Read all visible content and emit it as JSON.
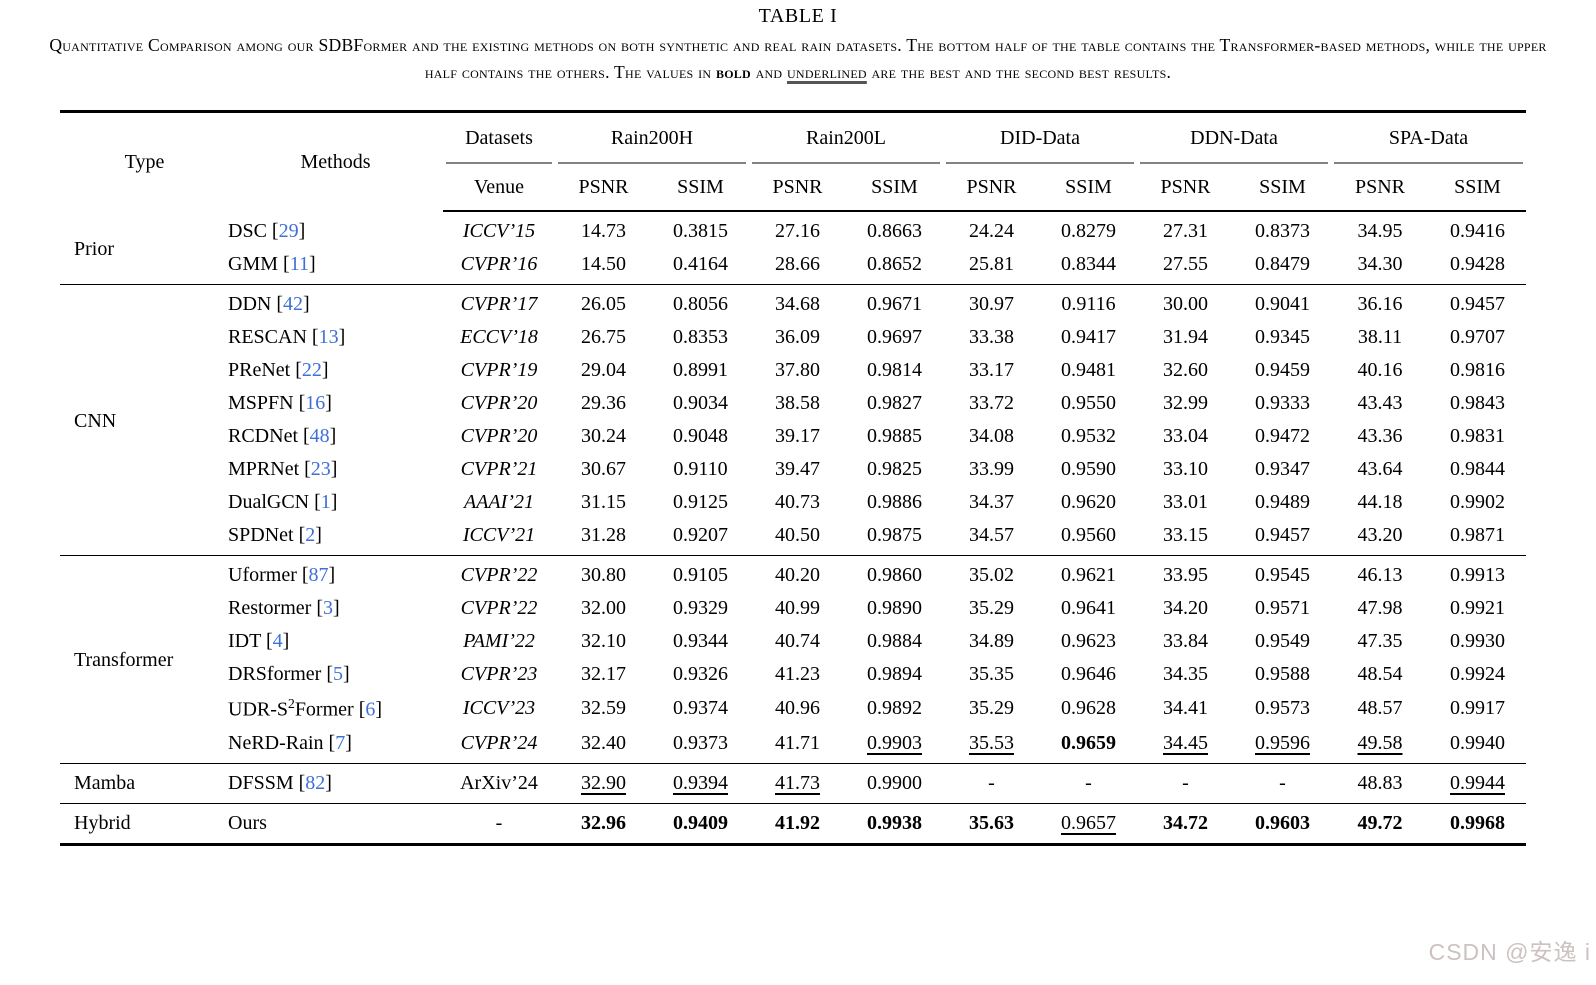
{
  "page": {
    "title": "TABLE I",
    "caption": {
      "part1": "Quantitative Comparison among our SDBFormer and the existing methods on both synthetic and real rain datasets. The bottom half of the table contains the Transformer-based methods, while the upper half contains the others. The values in ",
      "bold_word": "bold",
      "part2": " and ",
      "underlined_word": "underlined",
      "part3": " are the best and the second best results."
    },
    "watermark": "CSDN @安逸 i"
  },
  "colors": {
    "citation_blue": "#3f6fd8",
    "watermark_gray": "#cdc1c1",
    "header_rule_gray": "#838383"
  },
  "table": {
    "header": {
      "type": "Type",
      "methods": "Methods",
      "datasets": "Datasets",
      "venue": "Venue",
      "groups": [
        "Rain200H",
        "Rain200L",
        "DID-Data",
        "DDN-Data",
        "SPA-Data"
      ],
      "metrics": [
        "PSNR",
        "SSIM"
      ]
    },
    "sections": [
      {
        "type": "Prior",
        "rows": [
          {
            "name": "DSC",
            "sup": "",
            "name2": "",
            "cite": "29",
            "venue": "ICCV’15",
            "venue_italic": true,
            "values": [
              "14.73",
              "0.3815",
              "27.16",
              "0.8663",
              "24.24",
              "0.8279",
              "27.31",
              "0.8373",
              "34.95",
              "0.9416"
            ],
            "styles": [
              "",
              "",
              "",
              "",
              "",
              "",
              "",
              "",
              "",
              ""
            ]
          },
          {
            "name": "GMM",
            "sup": "",
            "name2": "",
            "cite": "11",
            "venue": "CVPR’16",
            "venue_italic": true,
            "values": [
              "14.50",
              "0.4164",
              "28.66",
              "0.8652",
              "25.81",
              "0.8344",
              "27.55",
              "0.8479",
              "34.30",
              "0.9428"
            ],
            "styles": [
              "",
              "",
              "",
              "",
              "",
              "",
              "",
              "",
              "",
              ""
            ]
          }
        ]
      },
      {
        "type": "CNN",
        "rows": [
          {
            "name": "DDN",
            "sup": "",
            "name2": "",
            "cite": "42",
            "venue": "CVPR’17",
            "venue_italic": true,
            "values": [
              "26.05",
              "0.8056",
              "34.68",
              "0.9671",
              "30.97",
              "0.9116",
              "30.00",
              "0.9041",
              "36.16",
              "0.9457"
            ],
            "styles": [
              "",
              "",
              "",
              "",
              "",
              "",
              "",
              "",
              "",
              ""
            ]
          },
          {
            "name": "RESCAN",
            "sup": "",
            "name2": "",
            "cite": "13",
            "venue": "ECCV’18",
            "venue_italic": true,
            "values": [
              "26.75",
              "0.8353",
              "36.09",
              "0.9697",
              "33.38",
              "0.9417",
              "31.94",
              "0.9345",
              "38.11",
              "0.9707"
            ],
            "styles": [
              "",
              "",
              "",
              "",
              "",
              "",
              "",
              "",
              "",
              ""
            ]
          },
          {
            "name": "PReNet",
            "sup": "",
            "name2": "",
            "cite": "22",
            "venue": "CVPR’19",
            "venue_italic": true,
            "values": [
              "29.04",
              "0.8991",
              "37.80",
              "0.9814",
              "33.17",
              "0.9481",
              "32.60",
              "0.9459",
              "40.16",
              "0.9816"
            ],
            "styles": [
              "",
              "",
              "",
              "",
              "",
              "",
              "",
              "",
              "",
              ""
            ]
          },
          {
            "name": "MSPFN",
            "sup": "",
            "name2": "",
            "cite": "16",
            "venue": "CVPR’20",
            "venue_italic": true,
            "values": [
              "29.36",
              "0.9034",
              "38.58",
              "0.9827",
              "33.72",
              "0.9550",
              "32.99",
              "0.9333",
              "43.43",
              "0.9843"
            ],
            "styles": [
              "",
              "",
              "",
              "",
              "",
              "",
              "",
              "",
              "",
              ""
            ]
          },
          {
            "name": "RCDNet",
            "sup": "",
            "name2": "",
            "cite": "48",
            "venue": "CVPR’20",
            "venue_italic": true,
            "values": [
              "30.24",
              "0.9048",
              "39.17",
              "0.9885",
              "34.08",
              "0.9532",
              "33.04",
              "0.9472",
              "43.36",
              "0.9831"
            ],
            "styles": [
              "",
              "",
              "",
              "",
              "",
              "",
              "",
              "",
              "",
              ""
            ]
          },
          {
            "name": "MPRNet",
            "sup": "",
            "name2": "",
            "cite": "23",
            "venue": "CVPR’21",
            "venue_italic": true,
            "values": [
              "30.67",
              "0.9110",
              "39.47",
              "0.9825",
              "33.99",
              "0.9590",
              "33.10",
              "0.9347",
              "43.64",
              "0.9844"
            ],
            "styles": [
              "",
              "",
              "",
              "",
              "",
              "",
              "",
              "",
              "",
              ""
            ]
          },
          {
            "name": "DualGCN",
            "sup": "",
            "name2": "",
            "cite": "1",
            "venue": "AAAI’21",
            "venue_italic": true,
            "values": [
              "31.15",
              "0.9125",
              "40.73",
              "0.9886",
              "34.37",
              "0.9620",
              "33.01",
              "0.9489",
              "44.18",
              "0.9902"
            ],
            "styles": [
              "",
              "",
              "",
              "",
              "",
              "",
              "",
              "",
              "",
              ""
            ]
          },
          {
            "name": "SPDNet",
            "sup": "",
            "name2": "",
            "cite": "2",
            "venue": "ICCV’21",
            "venue_italic": true,
            "values": [
              "31.28",
              "0.9207",
              "40.50",
              "0.9875",
              "34.57",
              "0.9560",
              "33.15",
              "0.9457",
              "43.20",
              "0.9871"
            ],
            "styles": [
              "",
              "",
              "",
              "",
              "",
              "",
              "",
              "",
              "",
              ""
            ]
          }
        ]
      },
      {
        "type": "Transformer",
        "rows": [
          {
            "name": "Uformer",
            "sup": "",
            "name2": "",
            "cite": "87",
            "venue": "CVPR’22",
            "venue_italic": true,
            "values": [
              "30.80",
              "0.9105",
              "40.20",
              "0.9860",
              "35.02",
              "0.9621",
              "33.95",
              "0.9545",
              "46.13",
              "0.9913"
            ],
            "styles": [
              "",
              "",
              "",
              "",
              "",
              "",
              "",
              "",
              "",
              ""
            ]
          },
          {
            "name": "Restormer",
            "sup": "",
            "name2": "",
            "cite": "3",
            "venue": "CVPR’22",
            "venue_italic": true,
            "values": [
              "32.00",
              "0.9329",
              "40.99",
              "0.9890",
              "35.29",
              "0.9641",
              "34.20",
              "0.9571",
              "47.98",
              "0.9921"
            ],
            "styles": [
              "",
              "",
              "",
              "",
              "",
              "",
              "",
              "",
              "",
              ""
            ]
          },
          {
            "name": "IDT",
            "sup": "",
            "name2": "",
            "cite": "4",
            "venue": "PAMI’22",
            "venue_italic": true,
            "values": [
              "32.10",
              "0.9344",
              "40.74",
              "0.9884",
              "34.89",
              "0.9623",
              "33.84",
              "0.9549",
              "47.35",
              "0.9930"
            ],
            "styles": [
              "",
              "",
              "",
              "",
              "",
              "",
              "",
              "",
              "",
              ""
            ]
          },
          {
            "name": "DRSformer",
            "sup": "",
            "name2": "",
            "cite": "5",
            "venue": "CVPR’23",
            "venue_italic": true,
            "values": [
              "32.17",
              "0.9326",
              "41.23",
              "0.9894",
              "35.35",
              "0.9646",
              "34.35",
              "0.9588",
              "48.54",
              "0.9924"
            ],
            "styles": [
              "",
              "",
              "",
              "",
              "",
              "",
              "",
              "",
              "",
              ""
            ]
          },
          {
            "name": "UDR-S",
            "sup": "2",
            "name2": "Former",
            "cite": "6",
            "venue": "ICCV’23",
            "venue_italic": true,
            "values": [
              "32.59",
              "0.9374",
              "40.96",
              "0.9892",
              "35.29",
              "0.9628",
              "34.41",
              "0.9573",
              "48.57",
              "0.9917"
            ],
            "styles": [
              "",
              "",
              "",
              "",
              "",
              "",
              "",
              "",
              "",
              ""
            ]
          },
          {
            "name": "NeRD-Rain",
            "sup": "",
            "name2": "",
            "cite": "7",
            "venue": "CVPR’24",
            "venue_italic": true,
            "values": [
              "32.40",
              "0.9373",
              "41.71",
              "0.9903",
              "35.53",
              "0.9659",
              "34.45",
              "0.9596",
              "49.58",
              "0.9940"
            ],
            "styles": [
              "",
              "",
              "",
              "u",
              "u",
              "b",
              "u",
              "u",
              "u",
              ""
            ]
          }
        ]
      },
      {
        "type": "Mamba",
        "rows": [
          {
            "name": "DFSSM",
            "sup": "",
            "name2": "",
            "cite": "82",
            "venue": "ArXiv’24",
            "venue_italic": false,
            "values": [
              "32.90",
              "0.9394",
              "41.73",
              "0.9900",
              "-",
              "-",
              "-",
              "-",
              "48.83",
              "0.9944"
            ],
            "styles": [
              "u",
              "u",
              "u",
              "",
              "",
              "",
              "",
              "",
              "",
              "u"
            ]
          }
        ]
      },
      {
        "type": "Hybrid",
        "rows": [
          {
            "name": "Ours",
            "sup": "",
            "name2": "",
            "cite": "",
            "venue": "-",
            "venue_italic": false,
            "values": [
              "32.96",
              "0.9409",
              "41.92",
              "0.9938",
              "35.63",
              "0.9657",
              "34.72",
              "0.9603",
              "49.72",
              "0.9968"
            ],
            "styles": [
              "b",
              "b",
              "b",
              "b",
              "b",
              "u",
              "b",
              "b",
              "b",
              "b"
            ]
          }
        ]
      }
    ]
  }
}
